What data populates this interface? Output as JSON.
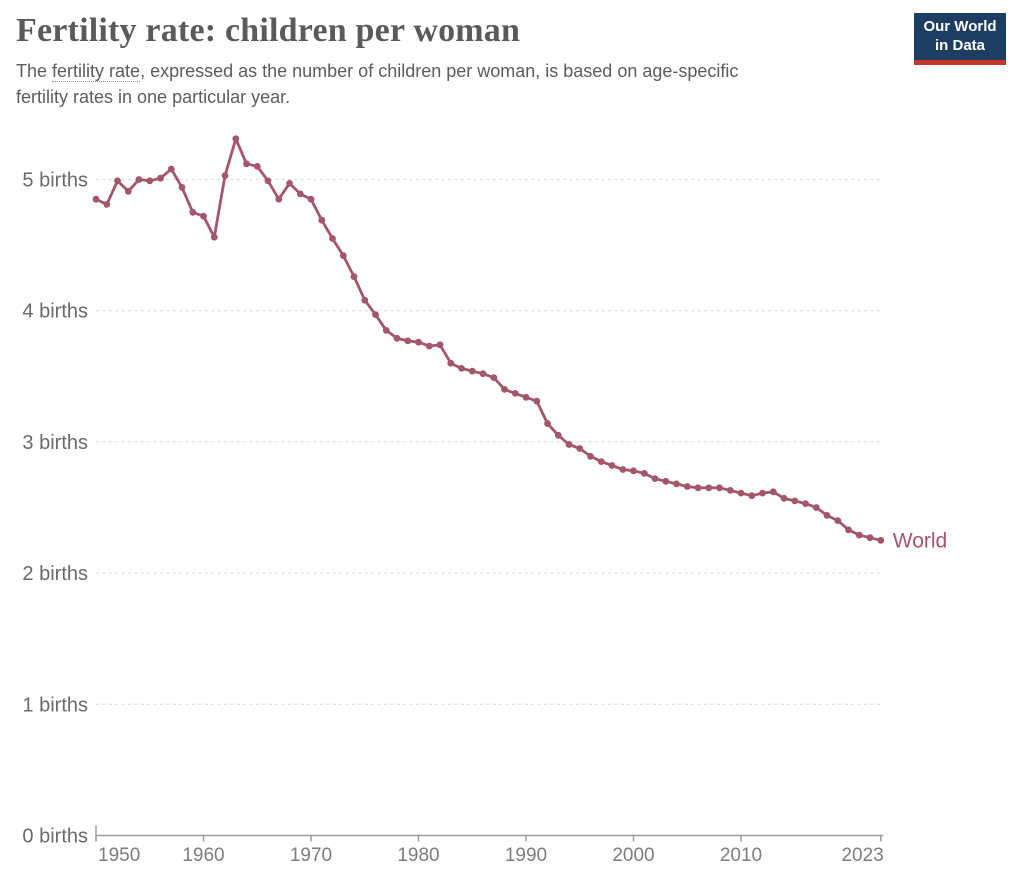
{
  "header": {
    "title": "Fertility rate: children per woman",
    "subtitle": {
      "prefix": "The ",
      "term": "fertility rate",
      "line1_rest": ", expressed as the number of children per woman, is based on age-specific",
      "line2": "fertility rates in one particular year."
    },
    "logo": {
      "line1": "Our World",
      "line2": "in Data",
      "bg_color": "#1d3d63",
      "accent_color": "#c0392b"
    }
  },
  "chart_data": {
    "type": "line",
    "title": "Fertility rate: children per woman",
    "xlabel": "",
    "ylabel": "births",
    "xlim": [
      1950,
      2023
    ],
    "ylim": [
      0,
      5.35
    ],
    "grid": "dashed horizontal gridlines",
    "legend_position": "end-of-line label",
    "x_ticks": [
      1950,
      1960,
      1970,
      1980,
      1990,
      2000,
      2010,
      2023
    ],
    "y_ticks": [
      0,
      1,
      2,
      3,
      4,
      5
    ],
    "y_tick_suffix": " births",
    "axis_color": "#9e9e9e",
    "gridline_color": "#d8d8d8",
    "series": [
      {
        "name": "World",
        "color": "#a4566a",
        "start_year": 1950,
        "end_year": 2023,
        "values": [
          4.85,
          4.81,
          4.99,
          4.91,
          5.0,
          4.99,
          5.01,
          5.08,
          4.94,
          4.75,
          4.72,
          4.56,
          5.03,
          5.31,
          5.12,
          5.1,
          4.99,
          4.85,
          4.97,
          4.89,
          4.85,
          4.69,
          4.55,
          4.42,
          4.26,
          4.08,
          3.97,
          3.85,
          3.79,
          3.77,
          3.76,
          3.73,
          3.74,
          3.6,
          3.56,
          3.54,
          3.52,
          3.49,
          3.4,
          3.37,
          3.34,
          3.31,
          3.14,
          3.05,
          2.98,
          2.95,
          2.89,
          2.85,
          2.82,
          2.79,
          2.78,
          2.76,
          2.72,
          2.7,
          2.68,
          2.66,
          2.65,
          2.65,
          2.65,
          2.63,
          2.61,
          2.59,
          2.61,
          2.62,
          2.57,
          2.55,
          2.53,
          2.5,
          2.44,
          2.4,
          2.33,
          2.29,
          2.27,
          2.25
        ]
      }
    ]
  }
}
